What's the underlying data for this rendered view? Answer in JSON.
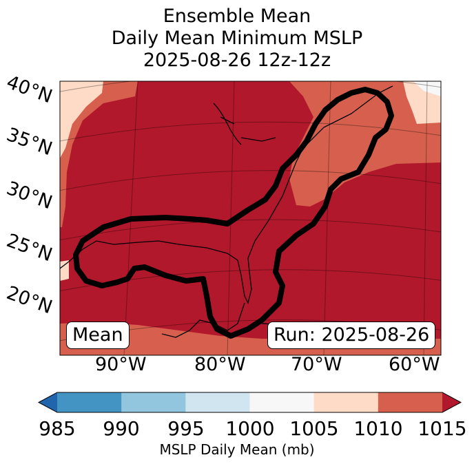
{
  "title": {
    "line1": "Ensemble Mean",
    "line2": "Daily Mean Minimum MSLP",
    "line3": "2025-08-26 12z-12z"
  },
  "map": {
    "lat_labels": [
      "40°N",
      "35°N",
      "30°N",
      "25°N",
      "20°N"
    ],
    "lon_labels": [
      "90°W",
      "80°W",
      "70°W",
      "60°W"
    ],
    "mean_box": "Mean",
    "run_box": "Run: 2025-08-26",
    "fill_colors": {
      "1005_1010": "#fddbc7",
      "1010_1015": "#d6604d",
      "gt_1015": "#b2182b"
    }
  },
  "colorbar": {
    "ticks": [
      "985",
      "990",
      "995",
      "1000",
      "1005",
      "1010",
      "1015"
    ],
    "colors": [
      "#2166ac",
      "#4393c3",
      "#92c5de",
      "#d1e5f0",
      "#f7f7f7",
      "#fddbc7",
      "#d6604d",
      "#b2182b"
    ],
    "label": "MSLP Daily Mean (mb)"
  }
}
